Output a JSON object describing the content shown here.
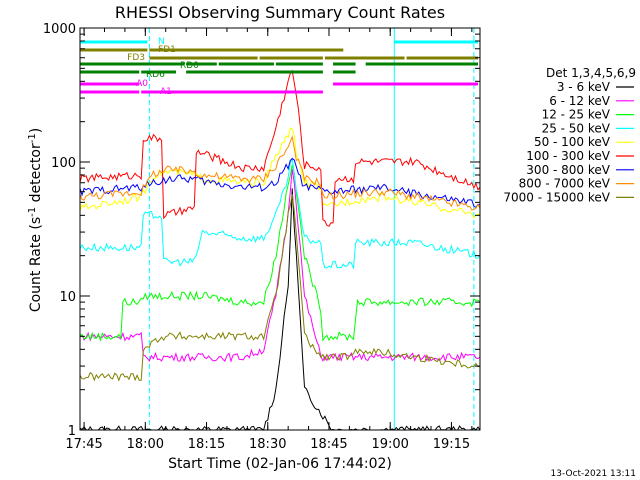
{
  "chart_data": {
    "type": "line",
    "title": "RHESSI Observing Summary Count Rates",
    "xlabel": "Start Time (02-Jan-06 17:44:02)",
    "ylabel_main": "Count Rate (s",
    "ylabel_sup1": "-1",
    "ylabel_mid": " detector",
    "ylabel_sup2": "-1",
    "ylabel_end": ")",
    "timestamp": "13-Oct-2021 13:11",
    "x_unit": "minutes from 17:44:02",
    "xlim": [
      0,
      98
    ],
    "ylim": [
      1,
      1000
    ],
    "yscale": "log",
    "x_ticks": [
      {
        "label": "17:45",
        "x": 1
      },
      {
        "label": "18:00",
        "x": 16
      },
      {
        "label": "18:15",
        "x": 31
      },
      {
        "label": "18:30",
        "x": 46
      },
      {
        "label": "18:45",
        "x": 61
      },
      {
        "label": "19:00",
        "x": 76
      },
      {
        "label": "19:15",
        "x": 91
      }
    ],
    "y_ticks": [
      {
        "label": "1",
        "value": 1
      },
      {
        "label": "10",
        "value": 10
      },
      {
        "label": "100",
        "value": 100
      },
      {
        "label": "1000",
        "value": 1000
      }
    ],
    "legend_title": "Det 1,3,4,5,6,9",
    "legend_position": "right",
    "series": [
      {
        "name": "3 - 6 keV",
        "color": "#000000",
        "x": [
          0,
          15,
          15.5,
          45,
          48,
          51,
          52,
          53,
          55,
          62,
          98
        ],
        "values": [
          1,
          1,
          1,
          1,
          2,
          12,
          60,
          20,
          2,
          1,
          1
        ]
      },
      {
        "name": "6 - 12 keV",
        "color": "#ff00ff",
        "x": [
          0,
          15,
          15.5,
          30,
          40,
          45,
          48,
          51,
          52,
          53,
          55,
          59,
          62,
          64,
          67,
          68,
          98
        ],
        "values": [
          5,
          5,
          3.5,
          3.5,
          3.5,
          4,
          10,
          40,
          95,
          50,
          10,
          3.5,
          3.5,
          3.5,
          3.5,
          3.5,
          3.5
        ]
      },
      {
        "name": "12 - 25 keV",
        "color": "#00ff00",
        "x": [
          0,
          10,
          10.5,
          15,
          15.5,
          30,
          40,
          45,
          48,
          51,
          52,
          53,
          55,
          59,
          59.5,
          62,
          67,
          68,
          98
        ],
        "values": [
          5,
          5,
          9,
          9,
          10,
          10,
          9,
          9,
          20,
          70,
          100,
          60,
          20,
          8,
          5,
          5,
          5,
          9,
          9
        ]
      },
      {
        "name": "25 - 50 keV",
        "color": "#00ffff",
        "x": [
          0,
          10,
          15,
          15.5,
          20,
          20.5,
          28,
          30,
          40,
          45,
          48,
          51,
          52,
          53,
          55,
          59,
          59.5,
          62,
          64,
          67,
          67.5,
          82,
          98
        ],
        "values": [
          23,
          23,
          23,
          40,
          40,
          18,
          18,
          30,
          27,
          27,
          40,
          75,
          110,
          60,
          27,
          25,
          17,
          17,
          17,
          17,
          25,
          25,
          20
        ]
      },
      {
        "name": "50 - 100 keV",
        "color": "#ffff00",
        "x": [
          0,
          15,
          18,
          22,
          28,
          30,
          40,
          45,
          48,
          51,
          52,
          53,
          55,
          59,
          59.5,
          62,
          67,
          75,
          82,
          98
        ],
        "values": [
          45,
          55,
          80,
          85,
          80,
          75,
          70,
          70,
          110,
          160,
          180,
          120,
          70,
          65,
          45,
          48,
          52,
          55,
          50,
          40
        ]
      },
      {
        "name": "100 - 300 keV",
        "color": "#ff0000",
        "x": [
          0,
          15,
          15.5,
          20,
          20.5,
          28,
          28.5,
          40,
          45,
          48,
          51,
          52,
          53,
          55,
          59,
          59.5,
          62,
          62.5,
          67,
          67.5,
          82,
          98
        ],
        "values": [
          75,
          80,
          150,
          150,
          40,
          45,
          120,
          90,
          90,
          180,
          400,
          480,
          320,
          95,
          90,
          35,
          35,
          75,
          75,
          100,
          100,
          65
        ]
      },
      {
        "name": "300 - 800 keV",
        "color": "#0000ff",
        "x": [
          0,
          15,
          18,
          22,
          28,
          30,
          40,
          45,
          48,
          51,
          52,
          53,
          55,
          59,
          59.5,
          62,
          67,
          75,
          82,
          98
        ],
        "values": [
          60,
          65,
          70,
          75,
          75,
          72,
          65,
          65,
          70,
          95,
          105,
          90,
          65,
          62,
          60,
          60,
          62,
          64,
          58,
          48
        ]
      },
      {
        "name": "800 - 7000 keV",
        "color": "#ff8c00",
        "x": [
          0,
          15,
          18,
          22,
          28,
          30,
          40,
          45,
          48,
          51,
          52,
          53,
          55,
          59,
          59.5,
          62,
          67,
          75,
          82,
          98
        ],
        "values": [
          55,
          60,
          82,
          88,
          85,
          80,
          75,
          75,
          95,
          130,
          150,
          110,
          75,
          70,
          55,
          56,
          58,
          60,
          55,
          45
        ]
      },
      {
        "name": "7000 - 15000 keV",
        "color": "#808000",
        "x": [
          0,
          15,
          15.5,
          20,
          30,
          45,
          48,
          51,
          52,
          53,
          55,
          59,
          62,
          67,
          68,
          98
        ],
        "values": [
          2.5,
          2.5,
          4,
          5,
          5,
          5,
          10,
          40,
          55,
          30,
          5,
          3.5,
          3.5,
          3.5,
          4,
          3
        ]
      }
    ],
    "flags": [
      {
        "name": "N",
        "color": "#00ffff",
        "segments": [
          [
            0,
            17
          ],
          [
            77,
            98
          ]
        ]
      },
      {
        "name": "FD1",
        "color": "#808000",
        "segments": [
          [
            0,
            17
          ],
          [
            17,
            65
          ]
        ]
      },
      {
        "name": "FD3",
        "color": "#808000",
        "segments": [
          [
            17,
            44
          ],
          [
            44,
            60
          ],
          [
            60,
            80
          ],
          [
            80,
            98
          ]
        ]
      },
      {
        "name": "RD0",
        "color": "#008000",
        "segments": [
          [
            0,
            26
          ],
          [
            26,
            34
          ],
          [
            34,
            48
          ],
          [
            48,
            60
          ],
          [
            62,
            68
          ],
          [
            70,
            98
          ]
        ]
      },
      {
        "name": "RD6",
        "color": "#008000",
        "segments": [
          [
            0,
            15
          ],
          [
            15,
            24
          ],
          [
            26,
            60
          ],
          [
            62,
            68
          ]
        ]
      },
      {
        "name": "A0",
        "color": "#ff00ff",
        "segments": [
          [
            0,
            15
          ],
          [
            62,
            98
          ]
        ]
      },
      {
        "name": "A1",
        "color": "#ff00ff",
        "segments": [
          [
            0,
            15
          ],
          [
            15,
            60
          ]
        ]
      }
    ],
    "vlines": [
      {
        "x": 0,
        "color": "#00ffff",
        "style": "solid"
      },
      {
        "x": 17,
        "color": "#00ffff",
        "style": "dashed"
      },
      {
        "x": 77,
        "color": "#00ffff",
        "style": "solid"
      },
      {
        "x": 96.5,
        "color": "#00ffff",
        "style": "dashed"
      }
    ]
  }
}
